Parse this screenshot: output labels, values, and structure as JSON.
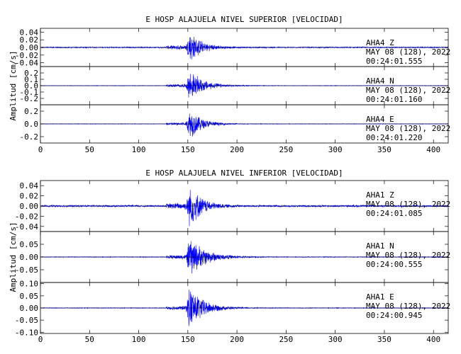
{
  "chart_data": [
    {
      "type": "line",
      "title": "E HOSP ALAJUELA NIVEL SUPERIOR [VELOCIDAD]",
      "ylabel": "Amplitud [cm/s]",
      "xlim": [
        0,
        415
      ],
      "xticks": [
        0,
        50,
        100,
        150,
        200,
        250,
        300,
        350,
        400
      ],
      "line_color": "#0000ff",
      "panels": [
        {
          "station": "AHA4",
          "component": "Z",
          "date": "MAY 08 (128), 2022",
          "time": "00:24:01.555",
          "ylim": [
            -0.05,
            0.05
          ],
          "yticks": [
            0.04,
            0.02,
            0.0,
            -0.02,
            -0.04
          ],
          "ytick_labels": [
            "0.04",
            "0.02",
            "0.00",
            "-0.02",
            "-0.04"
          ],
          "noise_amp": 0.0016,
          "onset": 128,
          "onset_amp": 0.007,
          "peak_time": 152,
          "peak_amp": 0.045,
          "decay": 12
        },
        {
          "station": "AHA4",
          "component": "N",
          "date": "MAY 08 (128), 2022",
          "time": "00:24:01.160",
          "ylim": [
            -0.3,
            0.3
          ],
          "yticks": [
            0.2,
            0.1,
            0.0,
            -0.1,
            -0.2
          ],
          "ytick_labels": [
            "0.2",
            "0.1",
            "0.0",
            "-0.1",
            "-0.2"
          ],
          "noise_amp": 0.004,
          "onset": 128,
          "onset_amp": 0.03,
          "peak_time": 152,
          "peak_amp": 0.26,
          "decay": 14
        },
        {
          "station": "AHA4",
          "component": "E",
          "date": "MAY 08 (128), 2022",
          "time": "00:24:01.220",
          "ylim": [
            -0.3,
            0.3
          ],
          "yticks": [
            0.2,
            0.0,
            -0.2
          ],
          "ytick_labels": [
            "0.2",
            "0.0",
            "-0.2"
          ],
          "noise_amp": 0.004,
          "onset": 128,
          "onset_amp": 0.03,
          "peak_time": 152,
          "peak_amp": 0.27,
          "decay": 12
        }
      ]
    },
    {
      "type": "line",
      "title": "E HOSP ALAJUELA NIVEL INFERIOR [VELOCIDAD]",
      "ylabel": "Amplitud [cm/s]",
      "xlim": [
        0,
        415
      ],
      "xticks": [
        0,
        50,
        100,
        150,
        200,
        250,
        300,
        350,
        400
      ],
      "line_color": "#0000ff",
      "panels": [
        {
          "station": "AHA1",
          "component": "Z",
          "date": "MAY 08 (128), 2022",
          "time": "00:24:01.085",
          "ylim": [
            -0.05,
            0.05
          ],
          "yticks": [
            0.04,
            0.02,
            0.0,
            -0.02,
            -0.04
          ],
          "ytick_labels": [
            "0.04",
            "0.02",
            "0.00",
            "-0.02",
            "-0.04"
          ],
          "noise_amp": 0.002,
          "onset": 128,
          "onset_amp": 0.008,
          "peak_time": 152,
          "peak_amp": 0.045,
          "decay": 12
        },
        {
          "station": "AHA1",
          "component": "N",
          "date": "MAY 08 (128), 2022",
          "time": "00:24:00.555",
          "ylim": [
            -0.1,
            0.1
          ],
          "yticks": [
            0.05,
            0.0,
            -0.05
          ],
          "ytick_labels": [
            "0.05",
            "0.00",
            "-0.05"
          ],
          "noise_amp": 0.0015,
          "onset": 128,
          "onset_amp": 0.01,
          "peak_time": 152,
          "peak_amp": 0.085,
          "decay": 16
        },
        {
          "station": "AHA1",
          "component": "E",
          "date": "MAY 08 (128), 2022",
          "time": "00:24:00.945",
          "ylim": [
            -0.105,
            0.105
          ],
          "yticks": [
            0.1,
            0.05,
            0.0,
            -0.05,
            -0.1
          ],
          "ytick_labels": [
            "0.10",
            "0.05",
            "0.00",
            "-0.05",
            "-0.10"
          ],
          "noise_amp": 0.0015,
          "onset": 128,
          "onset_amp": 0.01,
          "peak_time": 152,
          "peak_amp": 0.1,
          "decay": 14
        }
      ]
    }
  ]
}
